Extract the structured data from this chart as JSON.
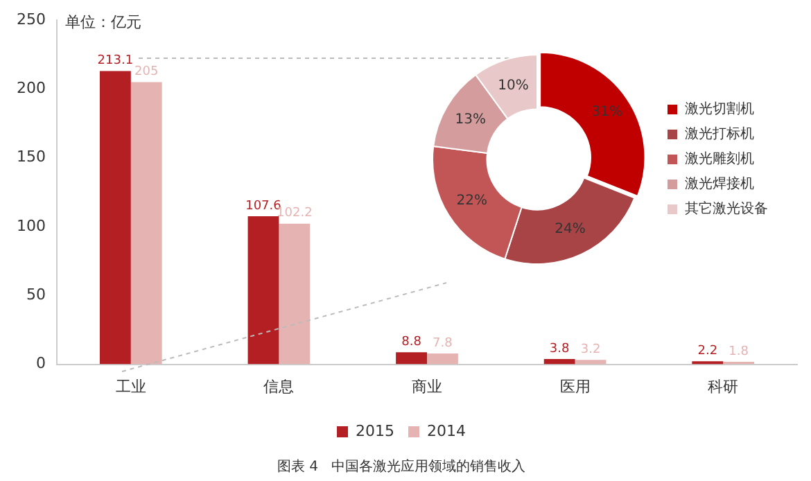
{
  "chart_data": [
    {
      "type": "bar",
      "title": "图表 4   中国各激光应用领域的销售收入",
      "ylabel": "单位：亿元",
      "categories": [
        "工业",
        "信息",
        "商业",
        "医用",
        "科研"
      ],
      "series": [
        {
          "name": "2015",
          "color": "#b41f24",
          "values": [
            213.1,
            107.6,
            8.8,
            3.8,
            2.2
          ]
        },
        {
          "name": "2014",
          "color": "#e6b3b3",
          "values": [
            205,
            102.2,
            7.8,
            3.2,
            1.8
          ]
        }
      ],
      "ylim": [
        0,
        250
      ],
      "yticks": [
        0,
        50,
        100,
        150,
        200,
        250
      ],
      "grid": false,
      "legend": "bottom",
      "data_labels": true
    },
    {
      "type": "donut",
      "categories": [
        "激光切割机",
        "激光打标机",
        "激光雕刻机",
        "激光焊接机",
        "其它激光设备"
      ],
      "values": [
        31,
        24,
        22,
        13,
        10
      ],
      "value_labels": [
        "31%",
        "24%",
        "22%",
        "13%",
        "10%"
      ],
      "colors": [
        "#c00000",
        "#a84446",
        "#c25556",
        "#d49c9c",
        "#e8c8c8"
      ],
      "legend": "right"
    }
  ]
}
